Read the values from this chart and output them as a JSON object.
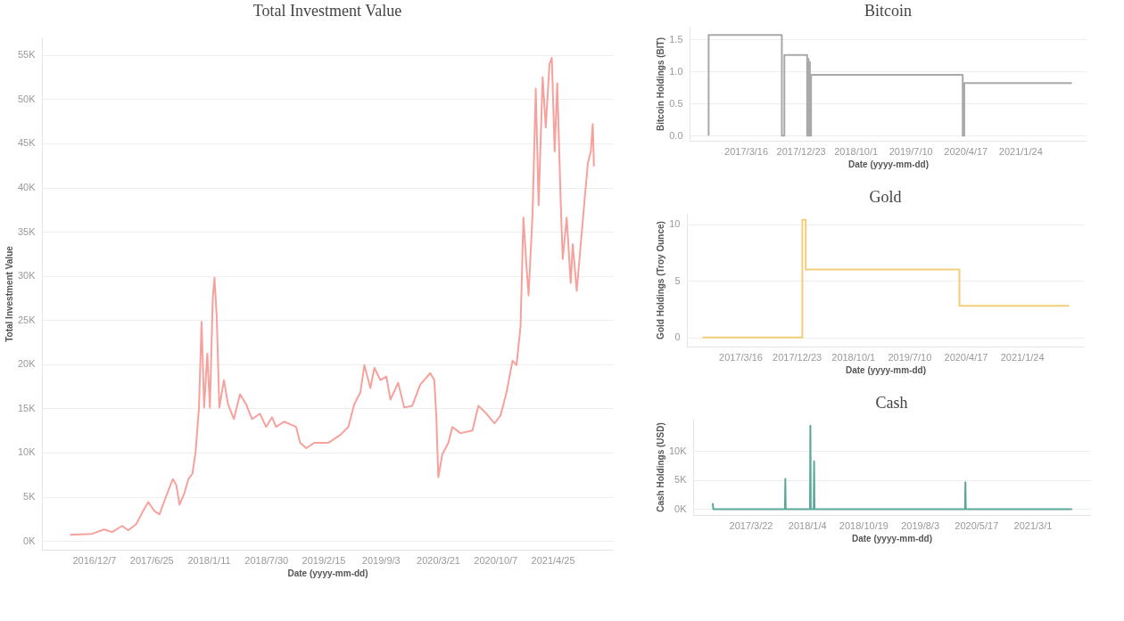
{
  "chart_data": [
    {
      "type": "line",
      "title": "Total Investment Value",
      "xlabel": "Date (yyyy-mm-dd)",
      "ylabel": "Total Investment Value",
      "color": "#f7a19c",
      "grid": "y",
      "xlim": [
        "2016-06-08",
        "2021-11-21"
      ],
      "ylim": [
        -1000,
        57000
      ],
      "xticks": [
        {
          "value": "2016-12-07",
          "label": "2016/12/7"
        },
        {
          "value": "2017-06-25",
          "label": "2017/6/25"
        },
        {
          "value": "2018-01-11",
          "label": "2018/1/11"
        },
        {
          "value": "2018-07-30",
          "label": "2018/7/30"
        },
        {
          "value": "2019-02-15",
          "label": "2019/2/15"
        },
        {
          "value": "2019-09-03",
          "label": "2019/9/3"
        },
        {
          "value": "2020-03-21",
          "label": "2020/3/21"
        },
        {
          "value": "2020-10-07",
          "label": "2020/10/7"
        },
        {
          "value": "2021-04-25",
          "label": "2021/4/25"
        }
      ],
      "yticks": [
        {
          "value": 0,
          "label": "0K"
        },
        {
          "value": 5000,
          "label": "5K"
        },
        {
          "value": 10000,
          "label": "10K"
        },
        {
          "value": 15000,
          "label": "15K"
        },
        {
          "value": 20000,
          "label": "20K"
        },
        {
          "value": 25000,
          "label": "25K"
        },
        {
          "value": 30000,
          "label": "30K"
        },
        {
          "value": 35000,
          "label": "35K"
        },
        {
          "value": 40000,
          "label": "40K"
        },
        {
          "value": 45000,
          "label": "45K"
        },
        {
          "value": 50000,
          "label": "50K"
        },
        {
          "value": 55000,
          "label": "55K"
        }
      ],
      "x": [
        "2016-09-14",
        "2016-11-30",
        "2017-01-11",
        "2017-02-08",
        "2017-03-15",
        "2017-04-05",
        "2017-05-03",
        "2017-05-24",
        "2017-06-14",
        "2017-07-05",
        "2017-07-23",
        "2017-08-09",
        "2017-08-30",
        "2017-09-08",
        "2017-09-20",
        "2017-10-01",
        "2017-10-18",
        "2017-11-01",
        "2017-11-15",
        "2017-11-26",
        "2017-12-08",
        "2017-12-17",
        "2017-12-26",
        "2018-01-06",
        "2018-01-15",
        "2018-01-25",
        "2018-01-31",
        "2018-02-08",
        "2018-02-17",
        "2018-03-05",
        "2018-03-19",
        "2018-04-09",
        "2018-04-30",
        "2018-05-21",
        "2018-06-11",
        "2018-07-09",
        "2018-07-30",
        "2018-08-20",
        "2018-09-03",
        "2018-10-01",
        "2018-11-12",
        "2018-11-26",
        "2018-12-17",
        "2019-01-14",
        "2019-03-04",
        "2019-04-15",
        "2019-05-13",
        "2019-06-03",
        "2019-06-24",
        "2019-07-08",
        "2019-07-29",
        "2019-08-12",
        "2019-09-02",
        "2019-09-23",
        "2019-10-07",
        "2019-11-03",
        "2019-11-24",
        "2019-12-22",
        "2020-01-19",
        "2020-02-23",
        "2020-03-08",
        "2020-03-15",
        "2020-03-22",
        "2020-04-05",
        "2020-04-26",
        "2020-05-10",
        "2020-06-07",
        "2020-07-19",
        "2020-08-09",
        "2020-09-06",
        "2020-10-04",
        "2020-10-25",
        "2020-11-15",
        "2020-12-06",
        "2020-12-20",
        "2021-01-03",
        "2021-01-13",
        "2021-01-24",
        "2021-01-31",
        "2021-02-14",
        "2021-02-25",
        "2021-03-07",
        "2021-03-21",
        "2021-04-01",
        "2021-04-14",
        "2021-04-22",
        "2021-05-02",
        "2021-05-11",
        "2021-05-23",
        "2021-05-30",
        "2021-06-13",
        "2021-06-27",
        "2021-07-04",
        "2021-07-18",
        "2021-08-01",
        "2021-08-15",
        "2021-08-26",
        "2021-09-05",
        "2021-09-12",
        "2021-09-16"
      ],
      "values": [
        700,
        800,
        1300,
        1000,
        1700,
        1200,
        1900,
        3200,
        4400,
        3400,
        3000,
        4500,
        6300,
        7000,
        6300,
        4100,
        5400,
        7000,
        7600,
        10000,
        15100,
        24800,
        15100,
        21200,
        15100,
        27400,
        29800,
        25300,
        15100,
        18200,
        15500,
        13800,
        16600,
        15500,
        13800,
        14400,
        12900,
        14000,
        12900,
        13500,
        12900,
        11100,
        10500,
        11100,
        11100,
        12000,
        12900,
        15500,
        16800,
        19900,
        17300,
        19600,
        18200,
        18600,
        16000,
        17900,
        15100,
        15300,
        17700,
        19000,
        18200,
        14200,
        7200,
        9800,
        11100,
        12900,
        12200,
        12500,
        15300,
        14400,
        13300,
        14200,
        16800,
        20400,
        19900,
        24300,
        36600,
        30900,
        27800,
        37100,
        51200,
        38000,
        52500,
        46800,
        54000,
        54700,
        44100,
        51800,
        38500,
        31900,
        36600,
        29200,
        33600,
        28300,
        33600,
        38800,
        42800,
        44100,
        47200,
        42400
      ]
    },
    {
      "type": "line",
      "title": "Bitcoin",
      "xlabel": "Date (yyyy-mm-dd)",
      "ylabel": "Bitcoin Holdings (BIT)",
      "color": "#a9a9a9",
      "grid": "y",
      "xlim": [
        "2016-05-31",
        "2021-12-30"
      ],
      "ylim": [
        -0.08,
        1.7
      ],
      "xticks": [
        {
          "value": "2017-03-16",
          "label": "2017/3/16"
        },
        {
          "value": "2017-12-23",
          "label": "2017/12/23"
        },
        {
          "value": "2018-10-01",
          "label": "2018/10/1"
        },
        {
          "value": "2019-07-10",
          "label": "2019/7/10"
        },
        {
          "value": "2020-04-17",
          "label": "2020/4/17"
        },
        {
          "value": "2021-01-24",
          "label": "2021/1/24"
        }
      ],
      "yticks": [
        {
          "value": 0,
          "label": "0.0"
        },
        {
          "value": 0.5,
          "label": "0.5"
        },
        {
          "value": 1,
          "label": "1.0"
        },
        {
          "value": 1.5,
          "label": "1.5"
        }
      ],
      "x": [
        "2016-09-06",
        "2016-09-06",
        "2017-09-17",
        "2017-09-17",
        "2017-09-30",
        "2017-09-30",
        "2018-01-25",
        "2018-01-25",
        "2018-01-28",
        "2018-01-28",
        "2018-02-01",
        "2018-02-01",
        "2018-02-05",
        "2018-02-05",
        "2018-02-08",
        "2018-02-08",
        "2018-02-14",
        "2018-02-14",
        "2020-04-03",
        "2020-04-03",
        "2020-04-11",
        "2020-04-11",
        "2021-10-16"
      ],
      "values": [
        0,
        1.57,
        1.57,
        0,
        0,
        1.26,
        1.26,
        0,
        0,
        1.2,
        1.2,
        0,
        0,
        1.15,
        1.15,
        0,
        0,
        0.95,
        0.95,
        0,
        0,
        0.82,
        0.82
      ]
    },
    {
      "type": "line",
      "title": "Gold",
      "xlabel": "Date (yyyy-mm-dd)",
      "ylabel": "Gold Holdings (Troy Ounce)",
      "color": "#f1cf78",
      "grid": "y",
      "xlim": [
        "2016-06-21",
        "2021-11-30"
      ],
      "ylim": [
        -0.8,
        11
      ],
      "xticks": [
        {
          "value": "2017-03-16",
          "label": "2017/3/16"
        },
        {
          "value": "2017-12-23",
          "label": "2017/12/23"
        },
        {
          "value": "2018-10-01",
          "label": "2018/10/1"
        },
        {
          "value": "2019-07-10",
          "label": "2019/7/10"
        },
        {
          "value": "2020-04-17",
          "label": "2020/4/17"
        },
        {
          "value": "2021-01-24",
          "label": "2021/1/24"
        }
      ],
      "yticks": [
        0,
        5,
        10
      ],
      "x": [
        "2016-09-07",
        "2018-01-20",
        "2018-01-20",
        "2018-02-06",
        "2018-02-06",
        "2020-03-17",
        "2020-03-17",
        "2021-09-17"
      ],
      "values": [
        0,
        0,
        10.4,
        10.4,
        6,
        6,
        2.8,
        2.8
      ]
    },
    {
      "type": "line",
      "title": "Cash",
      "xlabel": "Date (yyyy-mm-dd)",
      "ylabel": "Cash Holdings (USD)",
      "color": "#5ba89b",
      "grid": "y",
      "xlim": [
        "2016-06-01",
        "2021-12-20"
      ],
      "ylim": [
        -1000,
        15500
      ],
      "xticks": [
        {
          "value": "2017-03-22",
          "label": "2017/3/22"
        },
        {
          "value": "2018-01-04",
          "label": "2018/1/4"
        },
        {
          "value": "2018-10-19",
          "label": "2018/10/19"
        },
        {
          "value": "2019-08-03",
          "label": "2019/8/3"
        },
        {
          "value": "2020-05-17",
          "label": "2020/5/17"
        },
        {
          "value": "2021-03-01",
          "label": "2021/3/1"
        }
      ],
      "yticks": [
        {
          "value": 0,
          "label": "0K"
        },
        {
          "value": 5000,
          "label": "5K"
        },
        {
          "value": 10000,
          "label": "10K"
        }
      ],
      "x": [
        "2016-09-09",
        "2016-09-12",
        "2017-09-13",
        "2017-09-15",
        "2017-09-17",
        "2018-01-19",
        "2018-01-21",
        "2018-01-23",
        "2018-02-07",
        "2018-02-09",
        "2018-02-11",
        "2020-03-21",
        "2020-03-23",
        "2020-03-25",
        "2021-09-19"
      ],
      "values": [
        1000,
        0,
        0,
        5200,
        0,
        0,
        14300,
        0,
        0,
        8200,
        0,
        0,
        4600,
        0,
        0
      ]
    }
  ]
}
